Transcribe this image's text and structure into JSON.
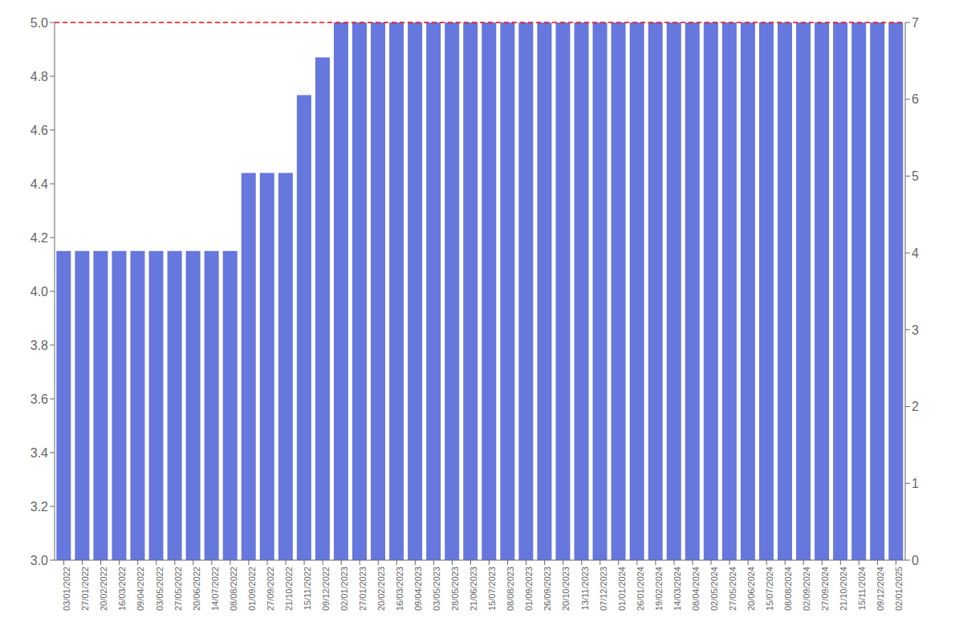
{
  "chart_data": {
    "type": "bar",
    "categories": [
      "03/01/2022",
      "27/01/2022",
      "20/02/2022",
      "16/03/2022",
      "09/04/2022",
      "03/05/2022",
      "27/05/2022",
      "20/06/2022",
      "14/07/2022",
      "08/08/2022",
      "01/09/2022",
      "27/09/2022",
      "21/10/2022",
      "15/11/2022",
      "09/12/2022",
      "02/01/2023",
      "27/01/2023",
      "20/02/2023",
      "16/03/2023",
      "09/04/2023",
      "03/05/2023",
      "28/05/2023",
      "21/06/2023",
      "15/07/2023",
      "08/08/2023",
      "01/09/2023",
      "26/09/2023",
      "20/10/2023",
      "13/11/2023",
      "07/12/2023",
      "01/01/2024",
      "26/01/2024",
      "19/02/2024",
      "14/03/2024",
      "08/04/2024",
      "02/05/2024",
      "27/05/2024",
      "20/06/2024",
      "15/07/2024",
      "08/08/2024",
      "02/09/2024",
      "27/09/2024",
      "21/10/2024",
      "15/11/2024",
      "09/12/2024",
      "02/01/2025"
    ],
    "values": [
      4.15,
      4.15,
      4.15,
      4.15,
      4.15,
      4.15,
      4.15,
      4.15,
      4.15,
      4.15,
      4.44,
      4.44,
      4.44,
      4.73,
      4.87,
      5.0,
      5.0,
      5.0,
      5.0,
      5.0,
      5.0,
      5.0,
      5.0,
      5.0,
      5.0,
      5.0,
      5.0,
      5.0,
      5.0,
      5.0,
      5.0,
      5.0,
      5.0,
      5.0,
      5.0,
      5.0,
      5.0,
      5.0,
      5.0,
      5.0,
      5.0,
      5.0,
      5.0,
      5.0,
      5.0,
      5.0
    ],
    "color": "#6677dd",
    "ylim": [
      3.0,
      5.0
    ],
    "yticks": [
      {
        "value": 3.0,
        "label": "3.0"
      },
      3.2,
      3.4,
      3.6,
      3.8,
      {
        "value": 4.0,
        "label": "4.0"
      },
      4.2,
      4.4,
      4.6,
      4.8,
      {
        "value": 5.0,
        "label": "5.0"
      }
    ],
    "y2lim": [
      0,
      7
    ],
    "y2ticks": [
      0,
      1,
      2,
      3,
      4,
      5,
      6,
      7
    ],
    "reference_lines": [
      {
        "value": 5.0,
        "color": "#ff0000",
        "line_style": "dashed"
      }
    ],
    "grid": false
  }
}
